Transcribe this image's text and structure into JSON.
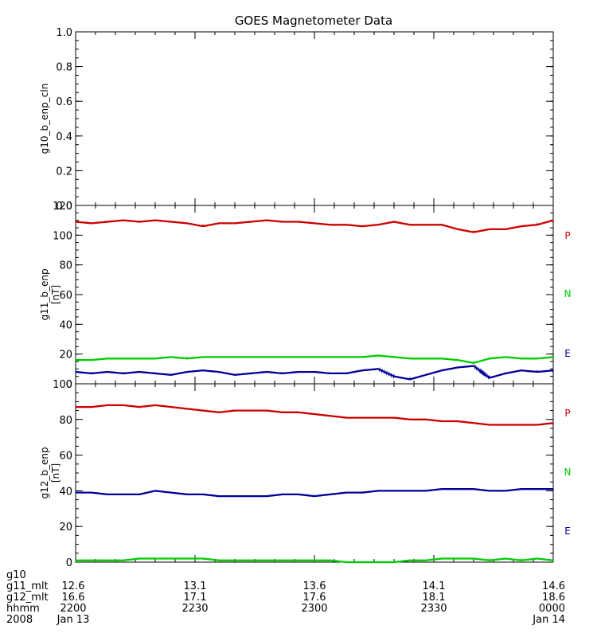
{
  "title": "GOES Magnetometer Data",
  "colors": {
    "P": "#cc0000",
    "N": "#00cc00",
    "E": "#000099",
    "axis": "#000000"
  },
  "chart_data": [
    {
      "type": "line",
      "ylabel": "g10_b_enp_cln",
      "unit": "",
      "ylim": [
        0.0,
        1.0
      ],
      "yticks": [
        "0.0",
        "0.2",
        "0.4",
        "0.6",
        "0.8",
        "1.0"
      ],
      "ytick_values": [
        0,
        0.2,
        0.4,
        0.6,
        0.8,
        1.0
      ],
      "minor_step": 0.05,
      "xlim_minutes": [
        0,
        120
      ],
      "series": []
    },
    {
      "type": "line",
      "ylabel": "g11_b_enp",
      "unit": "[nT]",
      "ylim": [
        0,
        120
      ],
      "yticks": [
        "0",
        "20",
        "40",
        "60",
        "80",
        "100",
        "120"
      ],
      "ytick_values": [
        0,
        20,
        40,
        60,
        80,
        100,
        120
      ],
      "minor_step": 5,
      "xlim_minutes": [
        0,
        120
      ],
      "legend": [
        "P",
        "N",
        "E"
      ],
      "series": [
        {
          "name": "P",
          "color_key": "P",
          "x": [
            0,
            4,
            8,
            12,
            16,
            20,
            24,
            28,
            32,
            36,
            40,
            44,
            48,
            52,
            56,
            60,
            64,
            68,
            72,
            76,
            80,
            84,
            88,
            92,
            96,
            100,
            104,
            108,
            112,
            116,
            120
          ],
          "y": [
            109,
            108,
            109,
            110,
            109,
            110,
            109,
            108,
            106,
            108,
            108,
            109,
            110,
            109,
            109,
            108,
            107,
            107,
            106,
            107,
            109,
            107,
            107,
            107,
            104,
            102,
            104,
            104,
            106,
            107,
            110
          ]
        },
        {
          "name": "N",
          "color_key": "N",
          "x": [
            0,
            4,
            8,
            12,
            16,
            20,
            24,
            28,
            32,
            36,
            40,
            44,
            48,
            52,
            56,
            60,
            64,
            68,
            72,
            76,
            80,
            84,
            88,
            92,
            96,
            100,
            104,
            108,
            112,
            116,
            120
          ],
          "y": [
            16,
            16,
            17,
            17,
            17,
            17,
            18,
            17,
            18,
            18,
            18,
            18,
            18,
            18,
            18,
            18,
            18,
            18,
            18,
            19,
            18,
            17,
            17,
            17,
            16,
            14,
            17,
            18,
            17,
            17,
            18
          ]
        },
        {
          "name": "E",
          "color_key": "E",
          "x": [
            0,
            4,
            8,
            12,
            16,
            20,
            24,
            28,
            32,
            36,
            40,
            44,
            48,
            52,
            56,
            60,
            64,
            68,
            72,
            76,
            80,
            84,
            88,
            92,
            96,
            100,
            104,
            108,
            112,
            116,
            120
          ],
          "y": [
            8,
            7,
            8,
            7,
            8,
            7,
            6,
            8,
            9,
            8,
            6,
            7,
            8,
            7,
            8,
            8,
            7,
            7,
            9,
            10,
            5,
            3,
            6,
            9,
            11,
            12,
            4,
            7,
            9,
            8,
            9
          ]
        }
      ]
    },
    {
      "type": "line",
      "ylabel": "g12_b_enp",
      "unit": "[nT]",
      "ylim": [
        0,
        100
      ],
      "yticks": [
        "0",
        "20",
        "40",
        "60",
        "80",
        "100"
      ],
      "ytick_values": [
        0,
        20,
        40,
        60,
        80,
        100
      ],
      "minor_step": 5,
      "xlim_minutes": [
        0,
        120
      ],
      "legend": [
        "P",
        "N",
        "E"
      ],
      "series": [
        {
          "name": "P",
          "color_key": "P",
          "x": [
            0,
            4,
            8,
            12,
            16,
            20,
            24,
            28,
            32,
            36,
            40,
            44,
            48,
            52,
            56,
            60,
            64,
            68,
            72,
            76,
            80,
            84,
            88,
            92,
            96,
            100,
            104,
            108,
            112,
            116,
            120
          ],
          "y": [
            87,
            87,
            88,
            88,
            87,
            88,
            87,
            86,
            85,
            84,
            85,
            85,
            85,
            84,
            84,
            83,
            82,
            81,
            81,
            81,
            81,
            80,
            80,
            79,
            79,
            78,
            77,
            77,
            77,
            77,
            78
          ]
        },
        {
          "name": "E",
          "color_key": "E",
          "x": [
            0,
            4,
            8,
            12,
            16,
            20,
            24,
            28,
            32,
            36,
            40,
            44,
            48,
            52,
            56,
            60,
            64,
            68,
            72,
            76,
            80,
            84,
            88,
            92,
            96,
            100,
            104,
            108,
            112,
            116,
            120
          ],
          "y": [
            39,
            39,
            38,
            38,
            38,
            40,
            39,
            38,
            38,
            37,
            37,
            37,
            37,
            38,
            38,
            37,
            38,
            39,
            39,
            40,
            40,
            40,
            40,
            41,
            41,
            41,
            40,
            40,
            41,
            41,
            41
          ]
        },
        {
          "name": "N",
          "color_key": "N",
          "x": [
            0,
            4,
            8,
            12,
            16,
            20,
            24,
            28,
            32,
            36,
            40,
            44,
            48,
            52,
            56,
            60,
            64,
            68,
            72,
            76,
            80,
            84,
            88,
            92,
            96,
            100,
            104,
            108,
            112,
            116,
            120
          ],
          "y": [
            1,
            1,
            1,
            1,
            2,
            2,
            2,
            2,
            2,
            1,
            1,
            1,
            1,
            1,
            1,
            1,
            1,
            0,
            0,
            0,
            0,
            1,
            1,
            2,
            2,
            2,
            1,
            2,
            1,
            2,
            1
          ]
        }
      ]
    }
  ],
  "x_axis": {
    "rows": [
      {
        "label": "g10",
        "values": [
          "",
          "",
          "",
          "",
          ""
        ]
      },
      {
        "label": "g11_mlt",
        "values": [
          "12.6",
          "13.1",
          "13.6",
          "14.1",
          "14.6"
        ]
      },
      {
        "label": "g12_mlt",
        "values": [
          "16.6",
          "17.1",
          "17.6",
          "18.1",
          "18.6"
        ]
      },
      {
        "label": "hhmm",
        "values": [
          "2200",
          "2230",
          "2300",
          "2330",
          "0000"
        ]
      },
      {
        "label": "2008",
        "values": [
          "Jan 13",
          "",
          "",
          "",
          "Jan 14"
        ]
      }
    ],
    "major_minutes": [
      0,
      30,
      60,
      90,
      120
    ],
    "minor_step_minutes": 5
  }
}
